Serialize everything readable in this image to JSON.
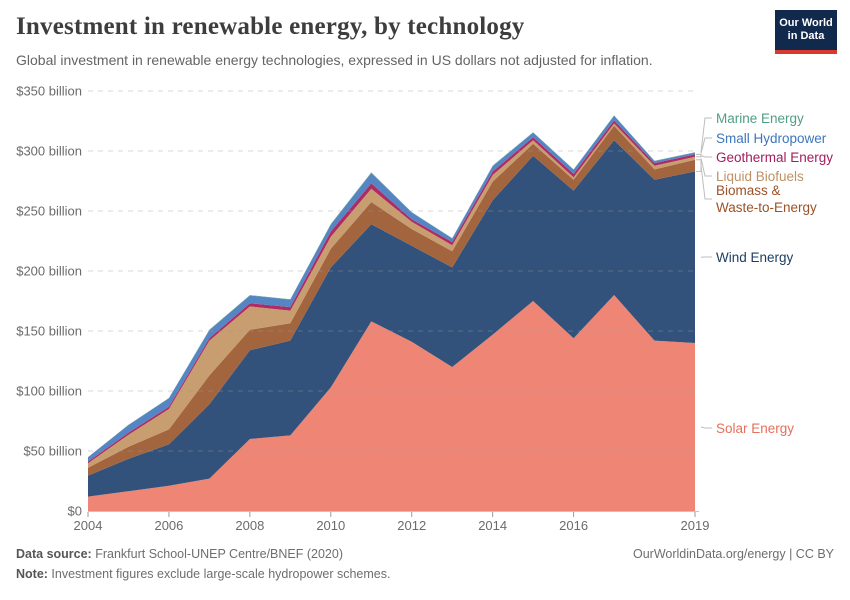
{
  "header": {
    "title": "Investment in renewable energy, by technology",
    "subtitle": "Global investment in renewable energy technologies, expressed in US dollars not adjusted for inflation."
  },
  "logo": {
    "line1": "Our World",
    "line2": "in Data",
    "bg_color": "#12294e",
    "stripe_color": "#d9382e"
  },
  "chart_data": {
    "type": "area",
    "stacked": true,
    "title": "Investment in renewable energy, by technology",
    "xlabel": "",
    "ylabel": "US dollars (billions)",
    "ylim": [
      0,
      350
    ],
    "grid": "dashed-horizontal",
    "legend_position": "right",
    "x": [
      2004,
      2005,
      2006,
      2007,
      2008,
      2009,
      2010,
      2011,
      2012,
      2013,
      2014,
      2015,
      2016,
      2017,
      2018,
      2019
    ],
    "x_ticks": [
      2004,
      2006,
      2008,
      2010,
      2012,
      2014,
      2016,
      2019
    ],
    "y_ticks": [
      {
        "value": 0,
        "label": "$0"
      },
      {
        "value": 50,
        "label": "$50 billion"
      },
      {
        "value": 100,
        "label": "$100 billion"
      },
      {
        "value": 150,
        "label": "$150 billion"
      },
      {
        "value": 200,
        "label": "$200 billion"
      },
      {
        "value": 250,
        "label": "$250 billion"
      },
      {
        "value": 300,
        "label": "$300 billion"
      },
      {
        "value": 350,
        "label": "$350 billion"
      }
    ],
    "series": [
      {
        "name": "solar-energy",
        "label": "Solar Energy",
        "color": "#ee8575",
        "text_color": "#e5705b",
        "values": [
          12,
          16.5,
          21,
          27,
          60,
          63,
          103,
          158,
          141,
          120,
          147,
          175,
          144,
          180,
          142,
          140
        ]
      },
      {
        "name": "wind-energy",
        "label": "Wind Energy",
        "color": "#33527b",
        "text_color": "#1d3e63",
        "values": [
          17.5,
          27,
          34.5,
          62,
          74,
          79,
          100,
          81,
          80,
          83,
          112,
          121,
          123,
          129,
          134,
          143
        ]
      },
      {
        "name": "biomass-waste-to-energy",
        "label": "Biomass &\nWaste-to-Energy",
        "color": "#a2653e",
        "text_color": "#9c5126",
        "values": [
          6.5,
          10,
          12.5,
          24,
          17,
          14.5,
          15.5,
          18.5,
          14,
          13.5,
          15.5,
          10,
          9,
          12,
          8.7,
          9.7
        ]
      },
      {
        "name": "liquid-biofuels",
        "label": "Liquid Biofuels",
        "color": "#c89d6f",
        "text_color": "#bd9265",
        "values": [
          3.8,
          10,
          17,
          29,
          19.5,
          10.5,
          10,
          11,
          6,
          5,
          5.5,
          3,
          2.2,
          2,
          3,
          2.5
        ]
      },
      {
        "name": "geothermal-energy",
        "label": "Geothermal Energy",
        "color": "#ae2b63",
        "text_color": "#a21d5c",
        "values": [
          1.4,
          1.8,
          1.9,
          2.1,
          2.6,
          2.9,
          4.4,
          4.5,
          2.2,
          2.7,
          2.9,
          2.4,
          2.7,
          2.4,
          2.2,
          2.0
        ]
      },
      {
        "name": "small-hydropower",
        "label": "Small Hydropower",
        "color": "#5585c3",
        "text_color": "#3d76bd",
        "values": [
          3.6,
          6.4,
          7,
          6.5,
          6.5,
          6.3,
          5.8,
          8.6,
          5.6,
          2.9,
          4.5,
          3.9,
          3.5,
          4,
          1.7,
          1.5
        ]
      },
      {
        "name": "marine-energy",
        "label": "Marine Energy",
        "color": "#58a28c",
        "text_color": "#4f9e86",
        "values": [
          0.1,
          0.2,
          0.3,
          0.6,
          0.3,
          0.3,
          0.5,
          0.6,
          0.3,
          0.3,
          0.4,
          0.3,
          0.3,
          0.3,
          0.2,
          0.3
        ]
      }
    ]
  },
  "footer": {
    "datasource_label": "Data source:",
    "datasource_value": " Frankfurt School-UNEP Centre/BNEF (2020)",
    "note_label": "Note:",
    "note_value": " Investment figures exclude large-scale hydropower schemes.",
    "link": "OurWorldinData.org/energy | CC BY"
  }
}
